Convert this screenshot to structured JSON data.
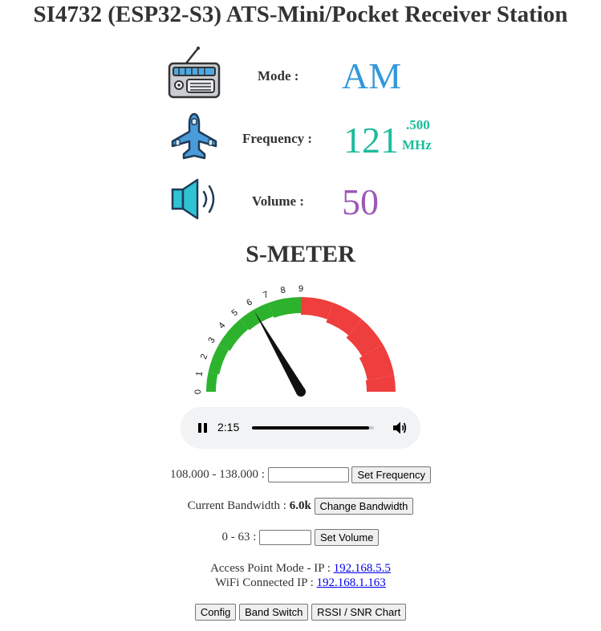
{
  "page": {
    "title": "SI4732 (ESP32-S3) ATS-Mini/Pocket Receiver Station"
  },
  "mode": {
    "label": "Mode :",
    "value": "AM",
    "color": "#3498db",
    "icon": "radio-icon"
  },
  "frequency": {
    "label": "Frequency :",
    "value": "121",
    "decimal": ".500",
    "unit": "MHz",
    "color": "#1abc9c",
    "icon": "airplane-icon"
  },
  "volume": {
    "label": "Volume :",
    "value": "50",
    "color": "#9b59b6",
    "icon": "speaker-icon"
  },
  "smeter": {
    "title": "S-METER",
    "scale_labels": [
      "0",
      "1",
      "2",
      "3",
      "4",
      "5",
      "6",
      "7",
      "8",
      "9"
    ],
    "needle_value": 6,
    "green_color": "#2db22d",
    "red_color": "#ef3e3e"
  },
  "audio": {
    "time": "2:15",
    "progress": 0.96
  },
  "controls": {
    "freq_range": "108.000 - 138.000 :",
    "freq_input_value": "",
    "set_frequency": "Set Frequency",
    "bandwidth_label": "Current Bandwidth :",
    "bandwidth_value": "6.0k",
    "change_bandwidth": "Change Bandwidth",
    "volume_range": "0 - 63 :",
    "volume_input_value": "",
    "set_volume": "Set Volume"
  },
  "network": {
    "ap_label": "Access Point Mode - IP :",
    "ap_ip": "192.168.5.5",
    "wifi_label": "WiFi Connected IP :",
    "wifi_ip": "192.168.1.163"
  },
  "footer": {
    "config": "Config",
    "band_switch": "Band Switch",
    "rssi_chart": "RSSI / SNR Chart"
  }
}
